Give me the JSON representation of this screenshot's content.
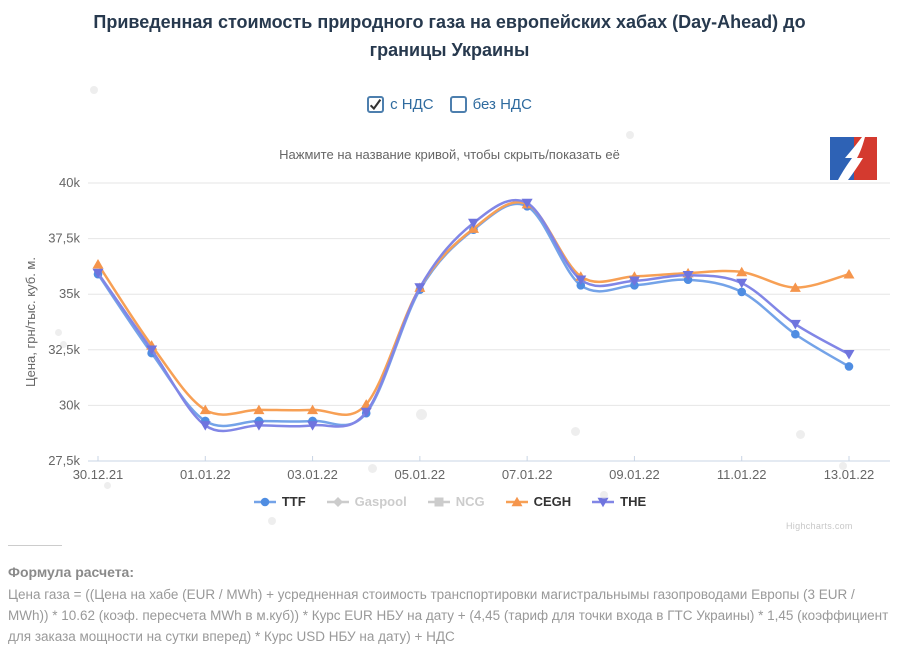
{
  "title": "Приведенная стоимость природного газа на европейских хабах (Day-Ahead) до границы Украины",
  "vat_toggle": {
    "options": [
      {
        "label": "с НДС",
        "checked": true
      },
      {
        "label": "без НДС",
        "checked": false
      }
    ]
  },
  "hint": "Нажмите на название кривой, чтобы скрыть/показать её",
  "watermark": "Highcharts.com",
  "colors": {
    "title_text": "#27394e",
    "link_blue": "#2f6b9f",
    "grid": "#e6e6e6",
    "axis": "#c9d4e4",
    "axis_text": "#666666",
    "legend_active": "#333333",
    "legend_disabled": "#cccccc",
    "logo_blue": "#2e62b5",
    "logo_red": "#d43a2f"
  },
  "chart_data": {
    "type": "line",
    "x": [
      "30.12.21",
      "31.12.21",
      "01.01.22",
      "02.01.22",
      "03.01.22",
      "04.01.22",
      "05.01.22",
      "06.01.22",
      "07.01.22",
      "08.01.22",
      "09.01.22",
      "10.01.22",
      "11.01.22",
      "12.01.22",
      "13.01.22"
    ],
    "x_tick_labels": [
      "30.12.21",
      "01.01.22",
      "03.01.22",
      "05.01.22",
      "07.01.22",
      "09.01.22",
      "11.01.22",
      "13.01.22"
    ],
    "ylabel": "Цена, грн/тыс. куб. м.",
    "ylim": [
      27500,
      40000
    ],
    "y_ticks": [
      27500,
      30000,
      32500,
      35000,
      37500,
      40000
    ],
    "y_tick_labels": [
      "27,5k",
      "30k",
      "32,5k",
      "35k",
      "37,5k",
      "40k"
    ],
    "grid": true,
    "legend_position": "bottom",
    "series": [
      {
        "name": "TTF",
        "marker": "circle",
        "visible": true,
        "line_color": "#74a3e8",
        "marker_color": "#4f8de2",
        "values": [
          35900,
          32350,
          29300,
          29300,
          29300,
          29650,
          35200,
          37900,
          38950,
          35400,
          35400,
          35650,
          35100,
          33200,
          31750
        ]
      },
      {
        "name": "Gaspool",
        "marker": "diamond",
        "visible": false,
        "line_color": "#cccccc",
        "marker_color": "#cccccc",
        "values": []
      },
      {
        "name": "NCG",
        "marker": "square",
        "visible": false,
        "line_color": "#cccccc",
        "marker_color": "#cccccc",
        "values": []
      },
      {
        "name": "CEGH",
        "marker": "triangle-up",
        "visible": true,
        "line_color": "#f7a055",
        "marker_color": "#f5954c",
        "values": [
          36350,
          32700,
          29800,
          29800,
          29800,
          30050,
          35300,
          37950,
          39050,
          35800,
          35800,
          35950,
          36000,
          35300,
          35900
        ]
      },
      {
        "name": "THE",
        "marker": "triangle-down",
        "visible": true,
        "line_color": "#8186e6",
        "marker_color": "#6f74de",
        "values": [
          35950,
          32500,
          29100,
          29100,
          29100,
          29700,
          35300,
          38200,
          39100,
          35650,
          35600,
          35850,
          35500,
          33650,
          32300
        ]
      }
    ]
  },
  "formula": {
    "title": "Формула расчета:",
    "body": "Цена газа = ((Цена на хабе (EUR / MWh) + усредненная стоимость транспортировки магистральнымы газопроводами Европы (3 EUR / MWh)) * 10.62 (коэф. пересчета MWh в м.куб)) * Курс EUR НБУ на дату + (4,45 (тариф для точки входа в ГТС Украины) * 1,45 (коэффициент для заказа мощности на сутки вперед) * Курс USD НБУ на дату) + НДС"
  }
}
